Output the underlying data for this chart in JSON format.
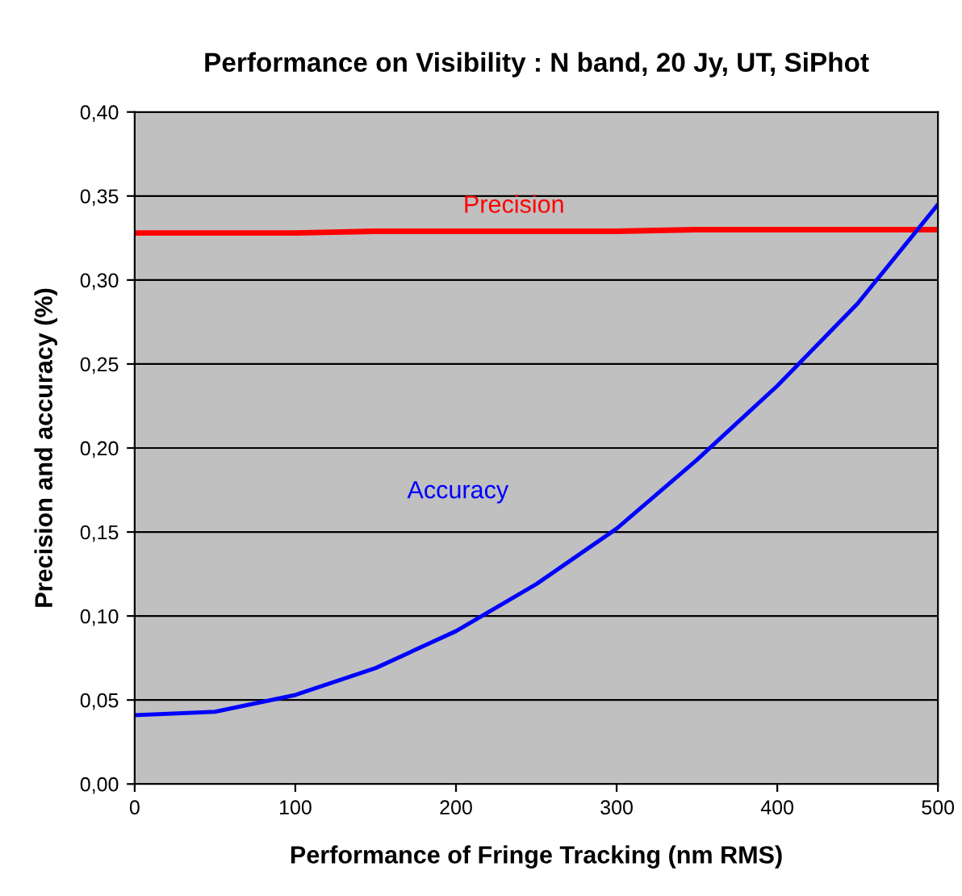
{
  "chart_data": {
    "type": "line",
    "title": "Performance on Visibility : N band, 20 Jy, UT, SiPhot",
    "xlabel": "Performance of Fringe Tracking (nm RMS)",
    "ylabel": "Precision and accuracy (%)",
    "x": [
      0,
      50,
      100,
      150,
      200,
      250,
      300,
      350,
      400,
      450,
      500
    ],
    "series": [
      {
        "name": "Precision",
        "color": "#ff0000",
        "values": [
          0.328,
          0.328,
          0.328,
          0.329,
          0.329,
          0.329,
          0.329,
          0.33,
          0.33,
          0.33,
          0.33
        ]
      },
      {
        "name": "Accuracy",
        "color": "#0000ff",
        "values": [
          0.041,
          0.043,
          0.053,
          0.069,
          0.091,
          0.119,
          0.152,
          0.193,
          0.237,
          0.286,
          0.345
        ]
      }
    ],
    "xlim": [
      0,
      500
    ],
    "xticks": [
      0,
      100,
      200,
      300,
      400,
      500
    ],
    "ylim": [
      0,
      0.4
    ],
    "yticks": [
      {
        "value": 0,
        "label": "0,00"
      },
      {
        "value": 0.05,
        "label": "0,05"
      },
      {
        "value": 0.1,
        "label": "0,10"
      },
      {
        "value": 0.15,
        "label": "0,15"
      },
      {
        "value": 0.2,
        "label": "0,20"
      },
      {
        "value": 0.25,
        "label": "0,25"
      },
      {
        "value": 0.3,
        "label": "0,30"
      },
      {
        "value": 0.35,
        "label": "0,35"
      },
      {
        "value": 0.4,
        "label": "0,40"
      }
    ],
    "grid": "y",
    "legend": false,
    "marker": "none",
    "line_style": "solid"
  }
}
